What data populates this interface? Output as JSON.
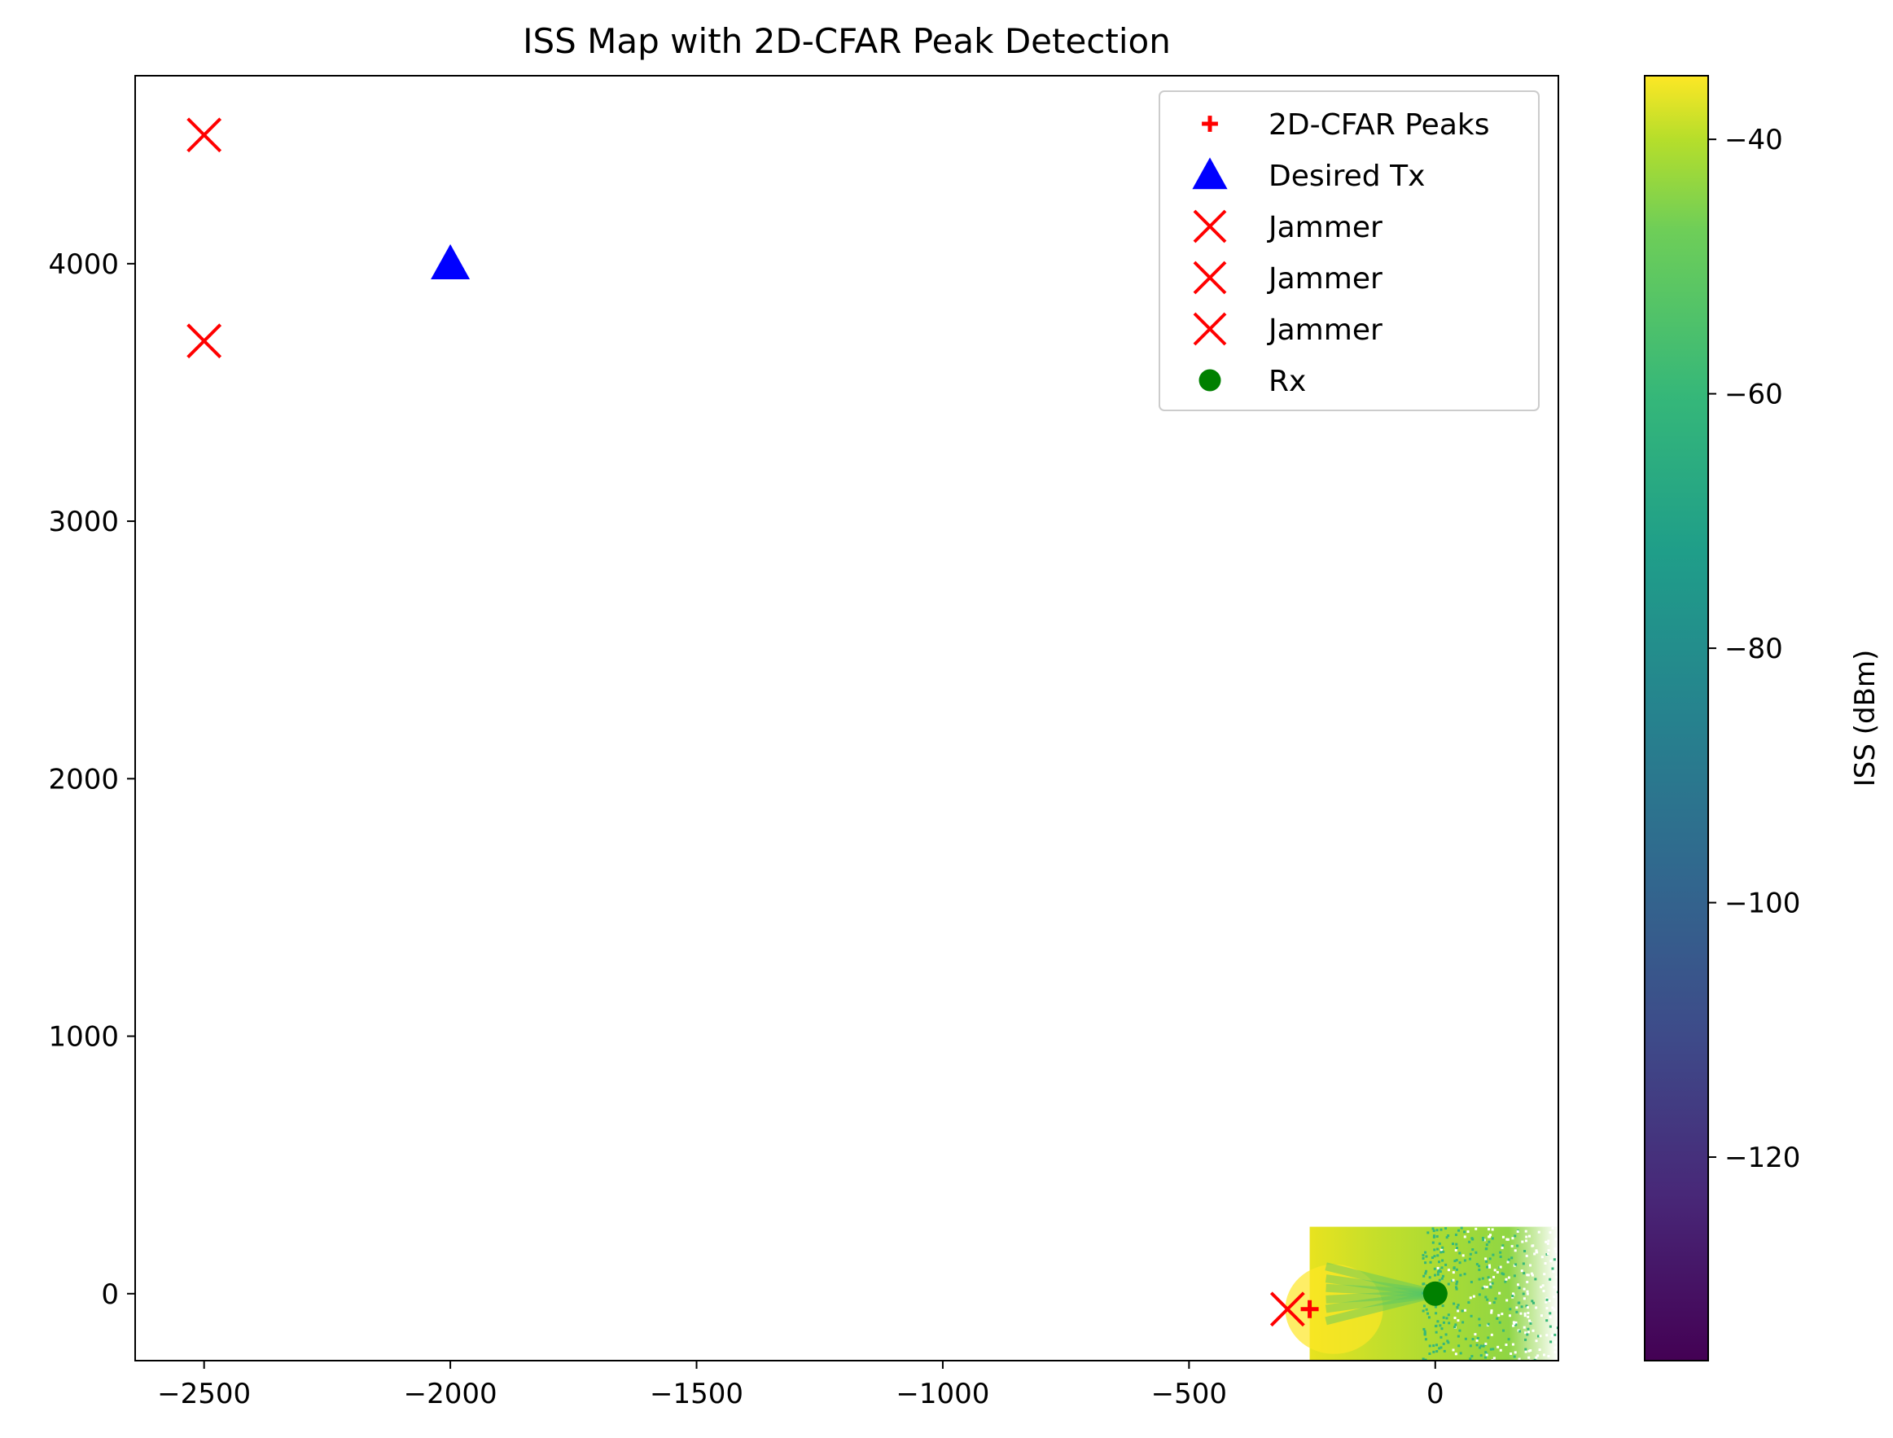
{
  "chart_data": {
    "type": "scatter",
    "title": "ISS Map with 2D-CFAR Peak Detection",
    "xlabel": "",
    "ylabel": "",
    "xlim": [
      -2640,
      250
    ],
    "ylim": [
      -260,
      4730
    ],
    "xticks": [
      -2500,
      -2000,
      -1500,
      -1000,
      -500,
      0
    ],
    "yticks": [
      0,
      1000,
      2000,
      3000,
      4000
    ],
    "grid": false,
    "legend_position": "top-right",
    "colors": {
      "peak": "#ff0000",
      "desired_tx": "#0000ff",
      "jammer": "#ff0000",
      "rx": "#008000"
    },
    "series": [
      {
        "name": "2D-CFAR Peaks",
        "marker": "plus",
        "color": "#ff0000",
        "points": [
          [
            -255,
            -60
          ]
        ]
      },
      {
        "name": "Desired Tx",
        "marker": "triangle",
        "color": "#0000ff",
        "points": [
          [
            -2000,
            4000
          ]
        ]
      },
      {
        "name": "Jammer",
        "marker": "x",
        "color": "#ff0000",
        "points": [
          [
            -2500,
            4500
          ]
        ]
      },
      {
        "name": "Jammer",
        "marker": "x",
        "color": "#ff0000",
        "points": [
          [
            -2500,
            3700
          ]
        ]
      },
      {
        "name": "Jammer",
        "marker": "x",
        "color": "#ff0000",
        "points": [
          [
            -300,
            -60
          ]
        ]
      },
      {
        "name": "Rx",
        "marker": "circle",
        "color": "#008000",
        "points": [
          [
            0,
            0
          ]
        ]
      }
    ],
    "heatmap": {
      "xrange": [
        -255,
        250
      ],
      "yrange": [
        -260,
        260
      ],
      "colormap": "viridis"
    },
    "colorbar": {
      "label": "ISS (dBm)",
      "range": [
        -136,
        -35
      ],
      "ticks": [
        -40,
        -60,
        -80,
        -100,
        -120
      ]
    }
  }
}
